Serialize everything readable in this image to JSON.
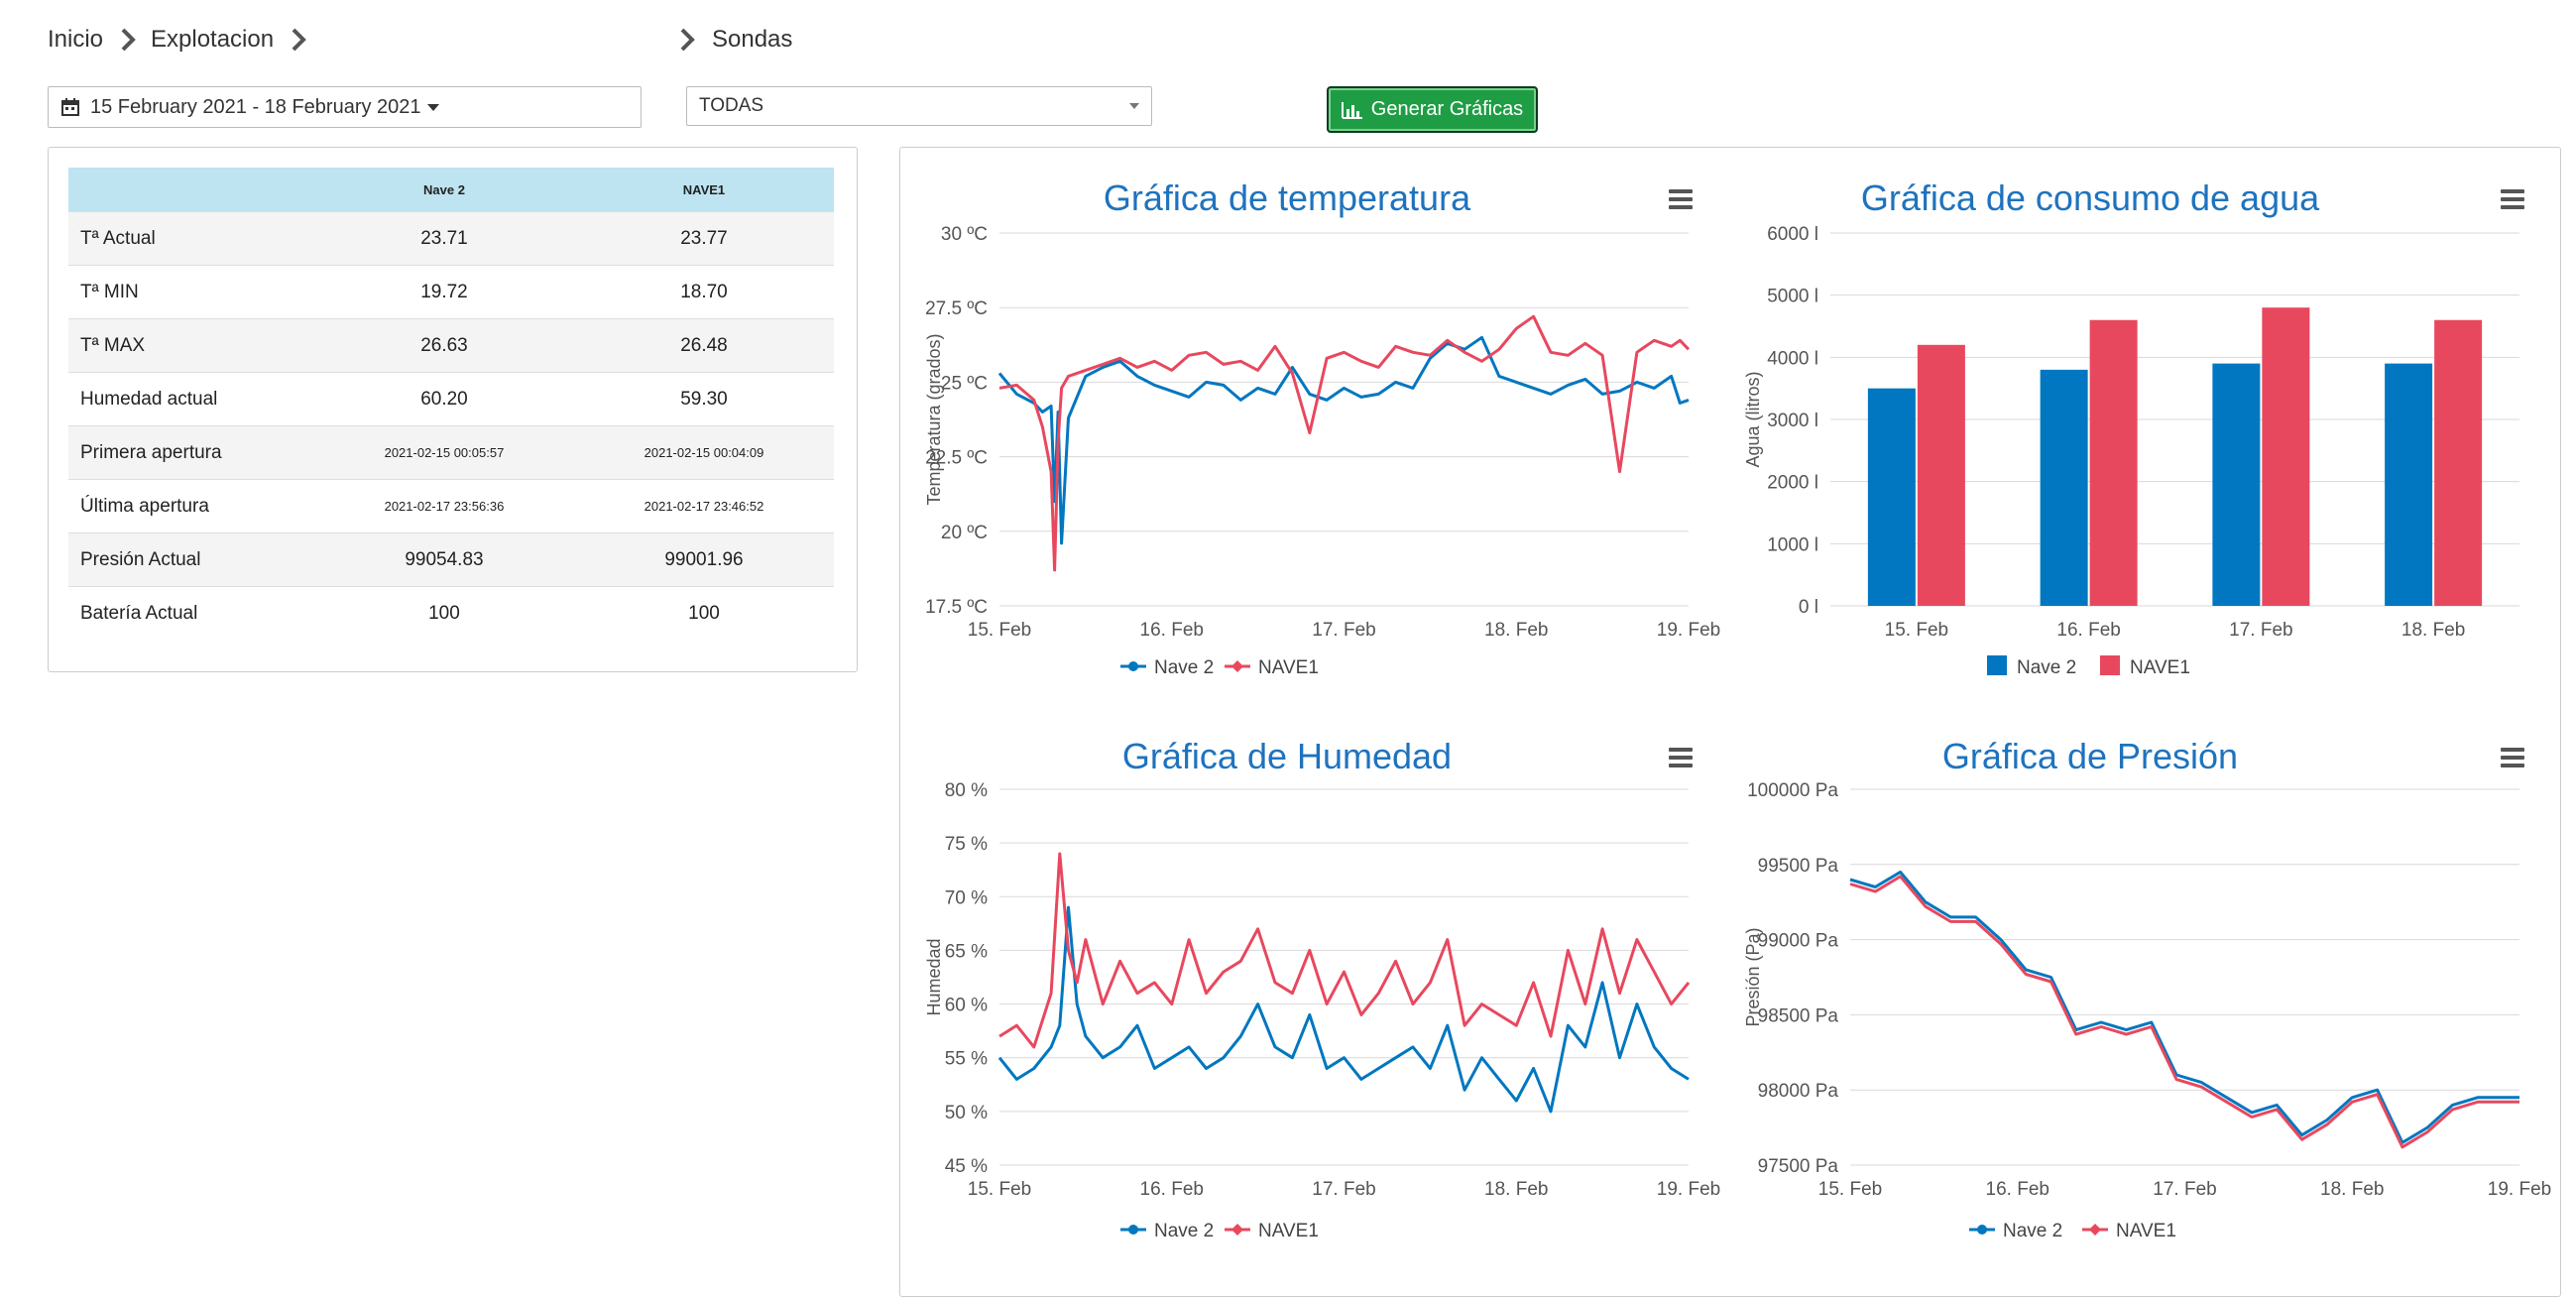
{
  "breadcrumb": {
    "items": [
      "Inicio",
      "Explotacion",
      "Sondas"
    ]
  },
  "filters": {
    "date_range": "15 February 2021 - 18 February 2021",
    "group_select": "TODAS",
    "generate_button": "Generar Gráficas"
  },
  "stats_table": {
    "headers": [
      "",
      "Nave 2",
      "NAVE1"
    ],
    "rows": [
      {
        "label": "Tª Actual",
        "nave2": "23.71",
        "nave1": "23.77"
      },
      {
        "label": "Tª MIN",
        "nave2": "19.72",
        "nave1": "18.70"
      },
      {
        "label": "Tª MAX",
        "nave2": "26.63",
        "nave1": "26.48"
      },
      {
        "label": "Humedad actual",
        "nave2": "60.20",
        "nave1": "59.30"
      },
      {
        "label": "Primera apertura",
        "nave2": "2021-02-15 00:05:57",
        "nave1": "2021-02-15 00:04:09"
      },
      {
        "label": "Última apertura",
        "nave2": "2021-02-17 23:56:36",
        "nave1": "2021-02-17 23:46:52"
      },
      {
        "label": "Presión Actual",
        "nave2": "99054.83",
        "nave1": "99001.96"
      },
      {
        "label": "Batería Actual",
        "nave2": "100",
        "nave1": "100"
      }
    ]
  },
  "colors": {
    "nave2": "#0077c0",
    "nave1": "#e8485e",
    "title": "#1e73be",
    "grid": "#d9d9d9",
    "axis_text": "#555555"
  },
  "chart_data": [
    {
      "type": "line",
      "title": "Gráfica de temperatura",
      "ylabel": "Temperatura (grados)",
      "x_ticks": [
        "15. Feb",
        "16. Feb",
        "17. Feb",
        "18. Feb",
        "19. Feb"
      ],
      "y_ticks": [
        "17.5 ºC",
        "20 ºC",
        "22.5 ºC",
        "25 ºC",
        "27.5 ºC",
        "30 ºC"
      ],
      "ylim": [
        17.5,
        30
      ],
      "series": [
        {
          "name": "Nave 2",
          "x": [
            0,
            0.1,
            0.2,
            0.25,
            0.3,
            0.32,
            0.34,
            0.36,
            0.4,
            0.5,
            0.6,
            0.7,
            0.8,
            0.9,
            1.0,
            1.1,
            1.2,
            1.3,
            1.4,
            1.5,
            1.6,
            1.7,
            1.8,
            1.9,
            2.0,
            2.1,
            2.2,
            2.3,
            2.4,
            2.5,
            2.6,
            2.7,
            2.8,
            2.9,
            3.0,
            3.1,
            3.2,
            3.3,
            3.4,
            3.5,
            3.6,
            3.7,
            3.8,
            3.9,
            3.95,
            4.0
          ],
          "y": [
            25.3,
            24.6,
            24.3,
            24.0,
            24.2,
            21.0,
            24.0,
            19.6,
            23.8,
            25.2,
            25.5,
            25.7,
            25.2,
            24.9,
            24.7,
            24.5,
            25.0,
            24.9,
            24.4,
            24.8,
            24.6,
            25.5,
            24.6,
            24.4,
            24.8,
            24.5,
            24.6,
            25.0,
            24.8,
            25.8,
            26.3,
            26.1,
            26.5,
            25.2,
            25.0,
            24.8,
            24.6,
            24.9,
            25.1,
            24.6,
            24.7,
            25.0,
            24.8,
            25.2,
            24.3,
            24.4
          ]
        },
        {
          "name": "NAVE1",
          "x": [
            0,
            0.1,
            0.2,
            0.25,
            0.3,
            0.32,
            0.34,
            0.36,
            0.4,
            0.5,
            0.6,
            0.7,
            0.8,
            0.9,
            1.0,
            1.1,
            1.2,
            1.3,
            1.4,
            1.5,
            1.6,
            1.7,
            1.8,
            1.9,
            2.0,
            2.1,
            2.2,
            2.3,
            2.4,
            2.5,
            2.6,
            2.7,
            2.8,
            2.9,
            3.0,
            3.1,
            3.2,
            3.3,
            3.4,
            3.5,
            3.6,
            3.7,
            3.8,
            3.9,
            3.95,
            4.0
          ],
          "y": [
            24.8,
            24.9,
            24.4,
            23.5,
            22.0,
            18.7,
            23.0,
            24.8,
            25.2,
            25.4,
            25.6,
            25.8,
            25.5,
            25.7,
            25.4,
            25.9,
            26.0,
            25.6,
            25.7,
            25.4,
            26.2,
            25.3,
            23.3,
            25.8,
            26.0,
            25.7,
            25.5,
            26.2,
            26.0,
            25.9,
            26.4,
            26.0,
            25.7,
            26.1,
            26.8,
            27.2,
            26.0,
            25.9,
            26.3,
            25.9,
            22.0,
            26.0,
            26.4,
            26.2,
            26.4,
            26.1
          ]
        }
      ]
    },
    {
      "type": "bar",
      "title": "Gráfica de consumo de agua",
      "ylabel": "Agua (litros)",
      "categories": [
        "15. Feb",
        "16. Feb",
        "17. Feb",
        "18. Feb"
      ],
      "y_ticks": [
        "0 l",
        "1000 l",
        "2000 l",
        "3000 l",
        "4000 l",
        "5000 l",
        "6000 l"
      ],
      "ylim": [
        0,
        6000
      ],
      "series": [
        {
          "name": "Nave 2",
          "values": [
            3500,
            3800,
            3900,
            3900
          ]
        },
        {
          "name": "NAVE1",
          "values": [
            4200,
            4600,
            4800,
            4600
          ]
        }
      ]
    },
    {
      "type": "line",
      "title": "Gráfica de Humedad",
      "ylabel": "Humedad",
      "x_ticks": [
        "15. Feb",
        "16. Feb",
        "17. Feb",
        "18. Feb",
        "19. Feb"
      ],
      "y_ticks": [
        "45 %",
        "50 %",
        "55 %",
        "60 %",
        "65 %",
        "70 %",
        "75 %",
        "80 %"
      ],
      "ylim": [
        45,
        80
      ],
      "series": [
        {
          "name": "Nave 2",
          "x": [
            0,
            0.1,
            0.2,
            0.3,
            0.35,
            0.4,
            0.45,
            0.5,
            0.6,
            0.7,
            0.8,
            0.9,
            1.0,
            1.1,
            1.2,
            1.3,
            1.4,
            1.5,
            1.6,
            1.7,
            1.8,
            1.9,
            2.0,
            2.1,
            2.2,
            2.3,
            2.4,
            2.5,
            2.6,
            2.7,
            2.8,
            2.9,
            3.0,
            3.1,
            3.2,
            3.3,
            3.4,
            3.5,
            3.6,
            3.7,
            3.8,
            3.9,
            4.0
          ],
          "y": [
            55,
            53,
            54,
            56,
            58,
            69,
            60,
            57,
            55,
            56,
            58,
            54,
            55,
            56,
            54,
            55,
            57,
            60,
            56,
            55,
            59,
            54,
            55,
            53,
            54,
            55,
            56,
            54,
            58,
            52,
            55,
            53,
            51,
            54,
            50,
            58,
            56,
            62,
            55,
            60,
            56,
            54,
            53
          ]
        },
        {
          "name": "NAVE1",
          "x": [
            0,
            0.1,
            0.2,
            0.3,
            0.35,
            0.4,
            0.45,
            0.5,
            0.6,
            0.7,
            0.8,
            0.9,
            1.0,
            1.1,
            1.2,
            1.3,
            1.4,
            1.5,
            1.6,
            1.7,
            1.8,
            1.9,
            2.0,
            2.1,
            2.2,
            2.3,
            2.4,
            2.5,
            2.6,
            2.7,
            2.8,
            2.9,
            3.0,
            3.1,
            3.2,
            3.3,
            3.4,
            3.5,
            3.6,
            3.7,
            3.8,
            3.9,
            4.0
          ],
          "y": [
            57,
            58,
            56,
            61,
            74,
            65,
            62,
            66,
            60,
            64,
            61,
            62,
            60,
            66,
            61,
            63,
            64,
            67,
            62,
            61,
            65,
            60,
            63,
            59,
            61,
            64,
            60,
            62,
            66,
            58,
            60,
            59,
            58,
            62,
            57,
            65,
            60,
            67,
            61,
            66,
            63,
            60,
            62
          ]
        }
      ]
    },
    {
      "type": "line",
      "title": "Gráfica de Presión",
      "ylabel": "Presión (Pa)",
      "x_ticks": [
        "15. Feb",
        "16. Feb",
        "17. Feb",
        "18. Feb",
        "19. Feb"
      ],
      "y_ticks": [
        "97500 Pa",
        "98000 Pa",
        "98500 Pa",
        "99000 Pa",
        "99500 Pa",
        "100000 Pa"
      ],
      "ylim": [
        97500,
        100000
      ],
      "series": [
        {
          "name": "Nave 2",
          "x": [
            0,
            0.15,
            0.3,
            0.45,
            0.6,
            0.75,
            0.9,
            1.05,
            1.2,
            1.35,
            1.5,
            1.65,
            1.8,
            1.95,
            2.1,
            2.25,
            2.4,
            2.55,
            2.7,
            2.85,
            3.0,
            3.15,
            3.3,
            3.45,
            3.6,
            3.75,
            3.9,
            4.0
          ],
          "y": [
            99400,
            99350,
            99450,
            99250,
            99150,
            99150,
            99000,
            98800,
            98750,
            98400,
            98450,
            98400,
            98450,
            98100,
            98050,
            97950,
            97850,
            97900,
            97700,
            97800,
            97950,
            98000,
            97650,
            97750,
            97900,
            97950,
            97950,
            97950
          ]
        },
        {
          "name": "NAVE1",
          "x": [
            0,
            0.15,
            0.3,
            0.45,
            0.6,
            0.75,
            0.9,
            1.05,
            1.2,
            1.35,
            1.5,
            1.65,
            1.8,
            1.95,
            2.1,
            2.25,
            2.4,
            2.55,
            2.7,
            2.85,
            3.0,
            3.15,
            3.3,
            3.45,
            3.6,
            3.75,
            3.9,
            4.0
          ],
          "y": [
            99370,
            99320,
            99420,
            99220,
            99120,
            99120,
            98970,
            98770,
            98720,
            98370,
            98420,
            98370,
            98420,
            98070,
            98020,
            97920,
            97820,
            97870,
            97670,
            97770,
            97920,
            97970,
            97620,
            97720,
            97870,
            97920,
            97920,
            97920
          ]
        }
      ]
    }
  ]
}
